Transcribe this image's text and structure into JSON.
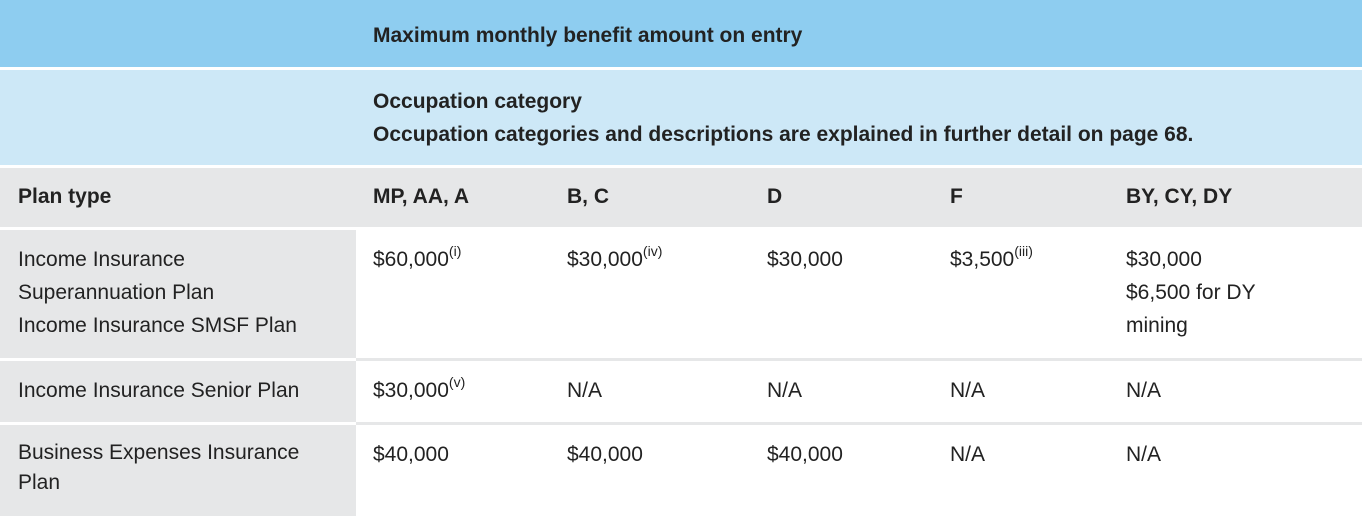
{
  "title": "Maximum monthly benefit amount on entry",
  "occupation": {
    "heading": "Occupation category",
    "note": "Occupation categories and descriptions are explained in further detail on page 68."
  },
  "columns": {
    "plan_type": "Plan type",
    "c1": "MP, AA, A",
    "c2": "B, C",
    "c3": "D",
    "c4": "F",
    "c5": "BY, CY, DY"
  },
  "rows": [
    {
      "plan_lines": [
        "Income Insurance",
        "Superannuation Plan",
        "Income Insurance SMSF Plan"
      ],
      "c1": {
        "value": "$60,000",
        "sup": "(i)"
      },
      "c2": {
        "value": "$30,000",
        "sup": "(iv)"
      },
      "c3": {
        "value": "$30,000",
        "sup": ""
      },
      "c4": {
        "value": "$3,500",
        "sup": "(iii)"
      },
      "c5_lines": [
        "$30,000",
        "$6,500 for DY",
        "mining"
      ]
    },
    {
      "plan_lines": [
        "Income Insurance Senior Plan"
      ],
      "c1": {
        "value": "$30,000",
        "sup": "(v)"
      },
      "c2": {
        "value": "N/A",
        "sup": ""
      },
      "c3": {
        "value": "N/A",
        "sup": ""
      },
      "c4": {
        "value": "N/A",
        "sup": ""
      },
      "c5_lines": [
        "N/A"
      ]
    },
    {
      "plan_lines": [
        "Business Expenses Insurance",
        "Plan"
      ],
      "c1": {
        "value": "$40,000",
        "sup": ""
      },
      "c2": {
        "value": "$40,000",
        "sup": ""
      },
      "c3": {
        "value": "$40,000",
        "sup": ""
      },
      "c4": {
        "value": "N/A",
        "sup": ""
      },
      "c5_lines": [
        "N/A"
      ]
    }
  ],
  "colors": {
    "title_bg": "#8ecdf0",
    "occupation_bg": "#cde8f7",
    "label_bg": "#e6e7e8"
  }
}
